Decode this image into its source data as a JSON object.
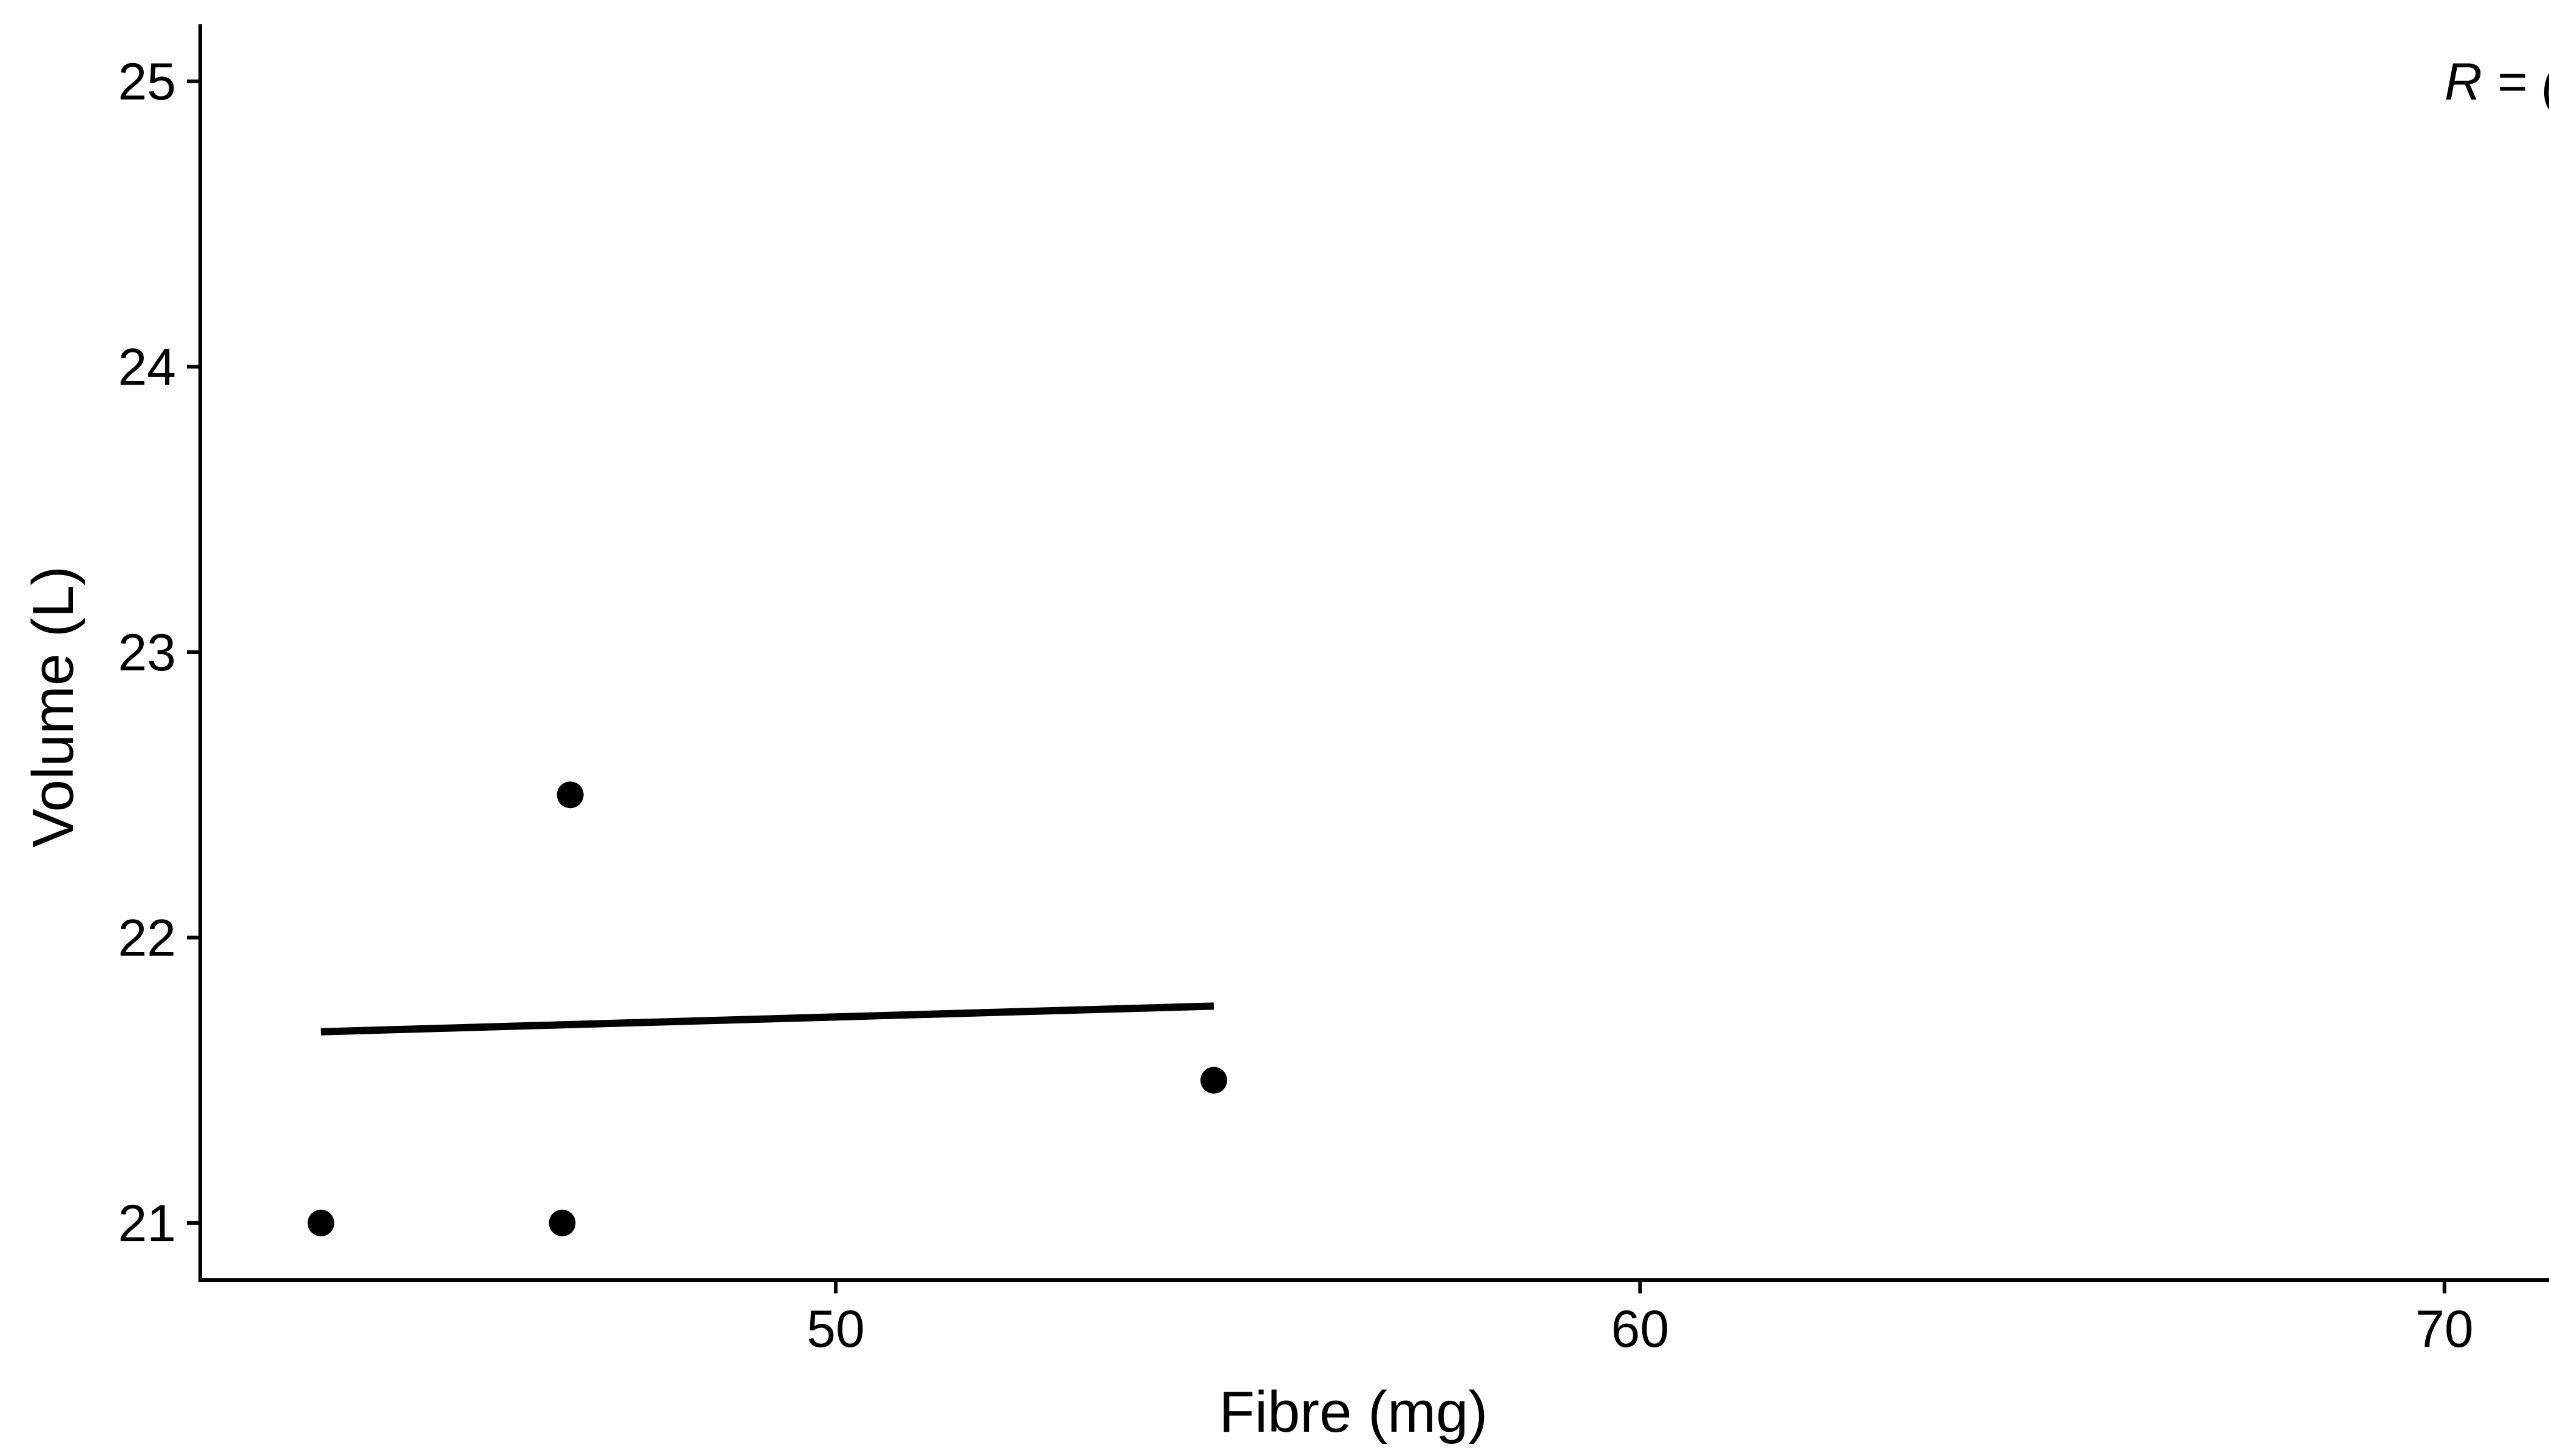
{
  "chart_data": {
    "type": "scatter",
    "title": "",
    "xlabel": "Fibre (mg)",
    "ylabel": "Volume (L)",
    "xlim": [
      42.1,
      71.3
    ],
    "ylim": [
      20.8,
      25.2
    ],
    "xticks": [
      50,
      60,
      70
    ],
    "yticks": [
      21,
      22,
      23,
      24,
      25
    ],
    "grid": false,
    "points": [
      {
        "x": 43.6,
        "y": 21.0
      },
      {
        "x": 46.6,
        "y": 21.0
      },
      {
        "x": 46.7,
        "y": 22.5
      },
      {
        "x": 54.7,
        "y": 21.5
      }
    ],
    "trend_line": {
      "x": [
        43.6,
        54.7
      ],
      "y": [
        21.67,
        21.76
      ]
    },
    "annotation": {
      "text": "R = (",
      "x": 70.0,
      "y": 25.0
    },
    "colors": {
      "points": "#000000",
      "line": "#000000",
      "axis": "#000000"
    }
  }
}
